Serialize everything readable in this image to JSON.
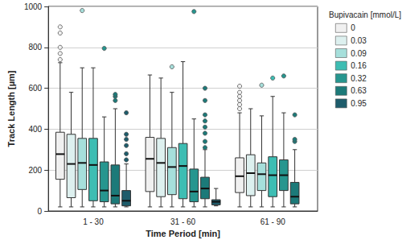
{
  "chart_data": {
    "type": "boxplot",
    "x_label": "Time Period [min]",
    "y_label": "Track Length [µm]",
    "legend_title": "Bupivacain [mmol/L]",
    "legend": "right",
    "grid": true,
    "categories": [
      "1 - 30",
      "31 - 60",
      "61 - 90"
    ],
    "ylim": [
      0,
      1000
    ],
    "yticks": [
      0,
      200,
      400,
      600,
      800,
      1000
    ],
    "series": [
      {
        "name": "0",
        "color": "#f0f0f0",
        "values": [
          [
            20,
            155,
            278,
            385,
            725
          ],
          [
            20,
            95,
            255,
            360,
            665
          ],
          [
            20,
            90,
            170,
            260,
            480
          ]
        ],
        "outliers": [
          [
            740,
            770,
            800,
            870,
            900
          ],
          [],
          [
            500,
            520,
            540,
            560,
            580,
            610
          ]
        ]
      },
      {
        "name": "0.03",
        "color": "#ddf0ef",
        "values": [
          [
            20,
            65,
            230,
            375,
            580
          ],
          [
            20,
            70,
            235,
            355,
            650
          ],
          [
            20,
            75,
            185,
            275,
            500
          ]
        ],
        "outliers": [
          [],
          [],
          []
        ]
      },
      {
        "name": "0.09",
        "color": "#a6dfdb",
        "values": [
          [
            20,
            105,
            235,
            355,
            700
          ],
          [
            20,
            80,
            215,
            310,
            580
          ],
          [
            20,
            100,
            180,
            235,
            465
          ]
        ],
        "outliers": [
          [
            980
          ],
          [
            705
          ],
          [
            615
          ]
        ]
      },
      {
        "name": "0.16",
        "color": "#3dbdb3",
        "values": [
          [
            20,
            50,
            225,
            355,
            700
          ],
          [
            20,
            60,
            220,
            330,
            730
          ],
          [
            20,
            70,
            175,
            265,
            560
          ]
        ],
        "outliers": [
          [],
          [],
          [
            650
          ]
        ]
      },
      {
        "name": "0.32",
        "color": "#26968f",
        "values": [
          [
            20,
            45,
            100,
            240,
            460
          ],
          [
            20,
            45,
            95,
            205,
            450
          ],
          [
            20,
            100,
            175,
            250,
            480
          ]
        ],
        "outliers": [
          [
            795
          ],
          [
            975
          ],
          [
            660
          ]
        ]
      },
      {
        "name": "0.63",
        "color": "#1c7a79",
        "values": [
          [
            20,
            35,
            75,
            225,
            500
          ],
          [
            20,
            60,
            110,
            165,
            300
          ],
          [
            20,
            35,
            70,
            140,
            300
          ]
        ],
        "outliers": [
          [
            540,
            560,
            570
          ],
          [
            310,
            340,
            380,
            410,
            440,
            470,
            540,
            600
          ],
          [
            340,
            350,
            470
          ]
        ]
      },
      {
        "name": "0.95",
        "color": "#1d5c6b",
        "values": [
          [
            20,
            25,
            50,
            100,
            230
          ],
          [
            25,
            30,
            45,
            55,
            110
          ],
          null
        ],
        "outliers": [
          [
            250,
            280,
            320,
            350,
            375,
            480
          ],
          [],
          []
        ]
      }
    ]
  }
}
